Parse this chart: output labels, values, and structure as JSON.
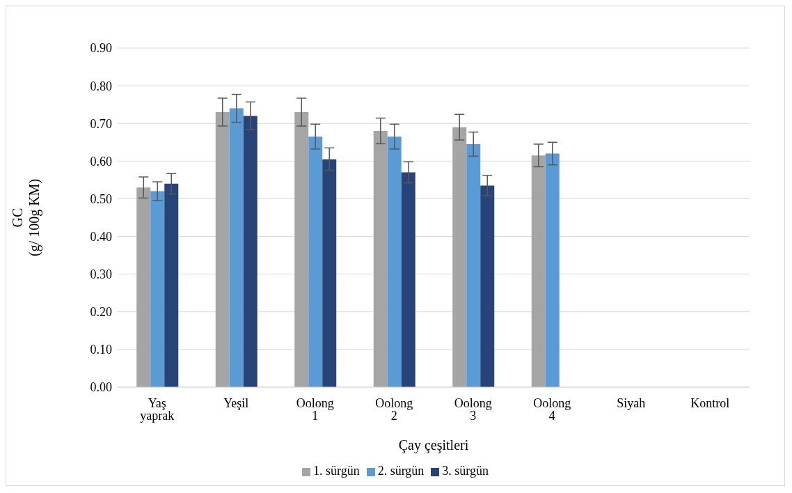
{
  "chart_data": {
    "type": "bar",
    "xlabel": "Çay çeşitleri",
    "ylabel": "GC\n(g/ 100g  KM)",
    "categories": [
      "Yaş yaprak",
      "Yeşil",
      "Oolong 1",
      "Oolong 2",
      "Oolong 3",
      "Oolong 4",
      "Siyah",
      "Kontrol"
    ],
    "series": [
      {
        "name": "1. sürgün",
        "color": "#a5a5a5",
        "values": [
          0.53,
          0.73,
          0.73,
          0.68,
          0.69,
          0.615,
          null,
          null
        ],
        "errors": [
          0.028,
          0.037,
          0.037,
          0.034,
          0.034,
          0.03,
          null,
          null
        ]
      },
      {
        "name": "2. sürgün",
        "color": "#5b9bd5",
        "values": [
          0.52,
          0.74,
          0.665,
          0.665,
          0.645,
          0.62,
          null,
          null
        ],
        "errors": [
          0.025,
          0.037,
          0.033,
          0.033,
          0.032,
          0.03,
          null,
          null
        ]
      },
      {
        "name": "3. sürgün",
        "color": "#264478",
        "values": [
          0.54,
          0.72,
          0.605,
          0.57,
          0.535,
          null,
          null,
          null
        ],
        "errors": [
          0.027,
          0.037,
          0.03,
          0.028,
          0.027,
          null,
          null,
          null
        ]
      }
    ],
    "ylim": [
      0,
      0.9
    ],
    "yticks": [
      {
        "value": 0,
        "label": "0.00"
      },
      {
        "value": 0.1,
        "label": "0.10"
      },
      {
        "value": 0.2,
        "label": "0.20"
      },
      {
        "value": 0.3,
        "label": "0.30"
      },
      {
        "value": 0.4,
        "label": "0.40"
      },
      {
        "value": 0.5,
        "label": "0.50"
      },
      {
        "value": 0.6,
        "label": "0.60"
      },
      {
        "value": 0.7,
        "label": "0.70"
      },
      {
        "value": 0.8,
        "label": "0.80"
      },
      {
        "value": 0.9,
        "label": "0.90"
      }
    ],
    "grid": "y",
    "legend": "bottom"
  }
}
